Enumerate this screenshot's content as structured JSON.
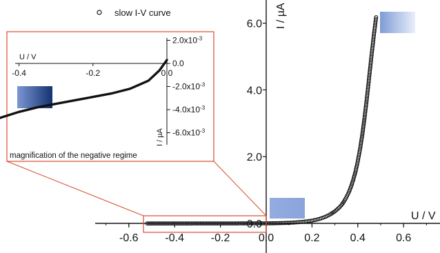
{
  "chart_data": [
    {
      "type": "scatter",
      "title": "",
      "xlabel": "U / V",
      "ylabel": "I / µA",
      "xlim": [
        -0.75,
        0.75
      ],
      "ylim": [
        -0.1,
        6.6
      ],
      "x_ticks": [
        "-0.6",
        "-0.4",
        "-0.2",
        "0.0",
        "0.2",
        "0.4",
        "0.6"
      ],
      "y_ticks": [
        "0.0",
        "2.0",
        "4.0",
        "6.0"
      ],
      "legend": {
        "position": "top-left"
      },
      "series": [
        {
          "name": "slow I-V curve",
          "marker": "open-circle",
          "x": [
            -0.52,
            -0.48,
            -0.44,
            -0.4,
            -0.36,
            -0.32,
            -0.28,
            -0.24,
            -0.2,
            -0.16,
            -0.12,
            -0.08,
            -0.04,
            0.0,
            0.04,
            0.08,
            0.12,
            0.16,
            0.2,
            0.22,
            0.24,
            0.26,
            0.28,
            0.3,
            0.32,
            0.33,
            0.34,
            0.35,
            0.36,
            0.37,
            0.38,
            0.39,
            0.4,
            0.41,
            0.42,
            0.43,
            0.44,
            0.45,
            0.46,
            0.47,
            0.48
          ],
          "y": [
            -0.005,
            -0.005,
            -0.004,
            -0.004,
            -0.004,
            -0.003,
            -0.003,
            -0.003,
            -0.002,
            -0.002,
            -0.001,
            -0.001,
            0.0,
            0.0,
            0.005,
            0.012,
            0.025,
            0.045,
            0.08,
            0.11,
            0.15,
            0.2,
            0.27,
            0.36,
            0.48,
            0.56,
            0.66,
            0.78,
            0.92,
            1.09,
            1.3,
            1.55,
            1.86,
            2.23,
            2.67,
            3.19,
            3.77,
            4.4,
            5.03,
            5.63,
            6.18
          ]
        }
      ]
    },
    {
      "type": "line",
      "title": "magnification of the negative regime",
      "xlabel": "U / V",
      "ylabel": "I / µA",
      "xlim": [
        -0.5,
        0.0
      ],
      "ylim": [
        -0.0065,
        0.0025
      ],
      "x_ticks": [
        "-0.4",
        "-0.2",
        "0.0"
      ],
      "y_ticks": [
        "2.0x10-3",
        "0.0",
        "-2.0x10-3",
        "-4.0x10-3",
        "-6.0x10-3"
      ],
      "series": [
        {
          "name": "",
          "x": [
            -0.5,
            -0.45,
            -0.4,
            -0.35,
            -0.3,
            -0.25,
            -0.2,
            -0.15,
            -0.1,
            -0.05,
            -0.02,
            0.0
          ],
          "y": [
            -0.0052,
            -0.0047,
            -0.0042,
            -0.0038,
            -0.0035,
            -0.0032,
            -0.0029,
            -0.0026,
            -0.0022,
            -0.0015,
            -0.0006,
            0.0003
          ]
        }
      ]
    }
  ],
  "colors": {
    "curve": "#111111",
    "inset_frame": "#d9492e",
    "swatch_light": "#8fa8dc",
    "swatch_dark": "#1f3f86"
  }
}
